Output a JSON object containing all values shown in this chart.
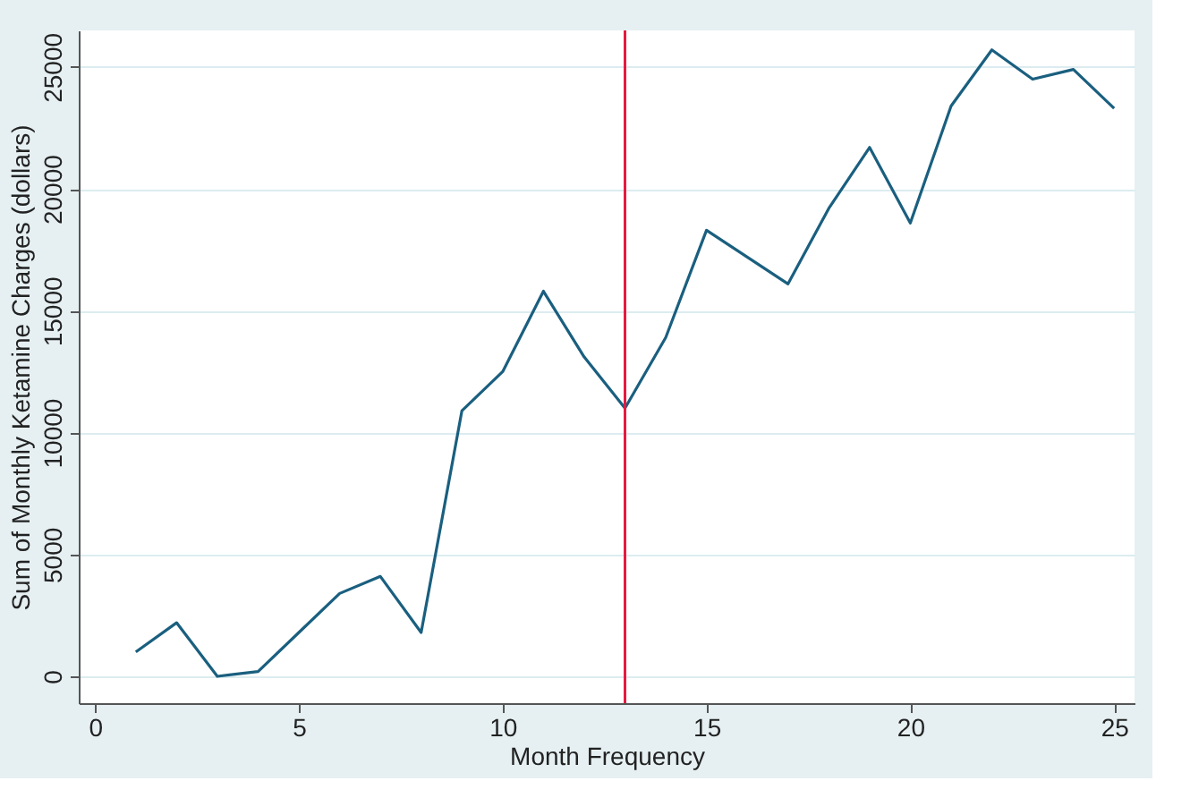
{
  "chart_data": {
    "type": "line",
    "xlabel": "Month Frequency",
    "ylabel": "Sum of Monthly Ketamine Charges (dollars)",
    "x": [
      1,
      2,
      3,
      4,
      5,
      6,
      7,
      8,
      9,
      10,
      11,
      12,
      13,
      14,
      15,
      16,
      17,
      18,
      19,
      20,
      21,
      22,
      23,
      24,
      25
    ],
    "series": [
      {
        "color": "#1a5f7f",
        "values": [
          1000,
          2200,
          0,
          200,
          1800,
          3400,
          4100,
          1800,
          10900,
          12500,
          15800,
          13100,
          11000,
          13900,
          18300,
          17200,
          16100,
          19200,
          21700,
          18600,
          23400,
          25700,
          24500,
          24900,
          23300
        ]
      }
    ],
    "xlim": [
      -0.4,
      25.5
    ],
    "ylim": [
      -1100,
      26500
    ],
    "xticks": [
      0,
      5,
      10,
      15,
      20,
      25
    ],
    "yticks": [
      0,
      5000,
      10000,
      15000,
      20000,
      25000
    ],
    "grid": "y",
    "marker": "none",
    "line_style": "solid",
    "ref_lines": [
      {
        "axis": "x",
        "value": 13,
        "color": "#e8193f"
      }
    ]
  }
}
